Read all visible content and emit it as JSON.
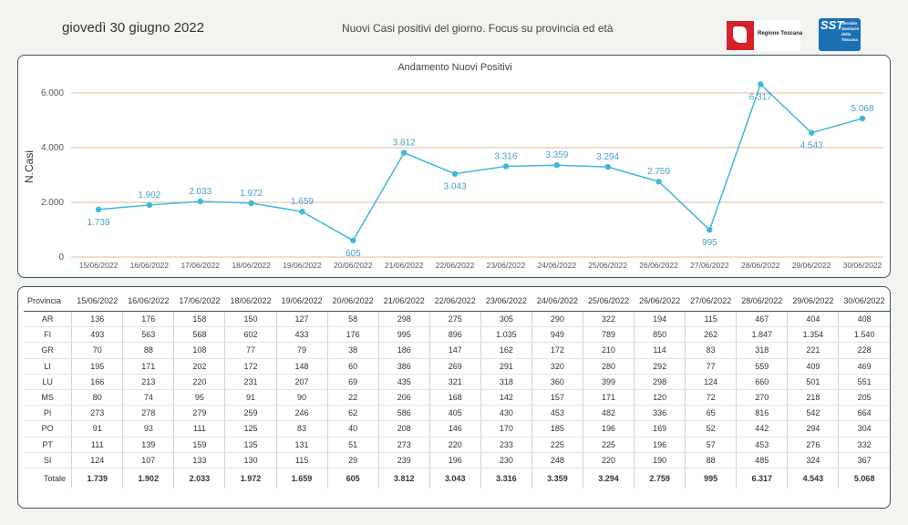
{
  "header": {
    "date": "giovedì 30 giugno 2022",
    "subtitle": "Nuovi Casi positivi del giorno. Focus su provincia ed età",
    "logo_region": "Regione Toscana",
    "logo_sst_short": "SST",
    "logo_sst_long": "Servizio Sanitario della Toscana"
  },
  "chart_data": {
    "type": "line",
    "title": "Andamento Nuovi Positivi",
    "ylabel": "N.Casi",
    "xlabel": "",
    "ylim": [
      0,
      6500
    ],
    "yticks": [
      0,
      2000,
      4000,
      6000
    ],
    "ytick_labels": [
      "0",
      "2.000",
      "4.000",
      "6.000"
    ],
    "grid": "horizontal",
    "colors": {
      "line": "#3fb8d8",
      "grid": "#e8b79a",
      "label": "#4a9fc9"
    },
    "categories": [
      "15/06/2022",
      "16/06/2022",
      "17/06/2022",
      "18/06/2022",
      "19/06/2022",
      "20/06/2022",
      "21/06/2022",
      "22/06/2022",
      "23/06/2022",
      "24/06/2022",
      "25/06/2022",
      "26/06/2022",
      "27/06/2022",
      "28/06/2022",
      "29/06/2022",
      "30/06/2022"
    ],
    "values": [
      1739,
      1902,
      2033,
      1972,
      1659,
      605,
      3812,
      3043,
      3316,
      3359,
      3294,
      2759,
      995,
      6317,
      4543,
      5068
    ],
    "value_labels": [
      "1.739",
      "1.902",
      "2.033",
      "1.972",
      "1.659",
      "605",
      "3.812",
      "3.043",
      "3.316",
      "3.359",
      "3.294",
      "2.759",
      "995",
      "6.317",
      "4.543",
      "5.068"
    ],
    "label_positions": [
      "below",
      "above",
      "above",
      "above",
      "above",
      "below",
      "above",
      "below",
      "above",
      "above",
      "above",
      "above",
      "below",
      "below",
      "below",
      "above"
    ]
  },
  "table": {
    "header_label": "Provincia",
    "dates": [
      "15/06/2022",
      "16/06/2022",
      "17/06/2022",
      "18/06/2022",
      "19/06/2022",
      "20/06/2022",
      "21/06/2022",
      "22/06/2022",
      "23/06/2022",
      "24/06/2022",
      "25/06/2022",
      "26/06/2022",
      "27/06/2022",
      "28/06/2022",
      "29/06/2022",
      "30/06/2022"
    ],
    "rows": [
      {
        "name": "AR",
        "values": [
          "136",
          "176",
          "158",
          "150",
          "127",
          "58",
          "298",
          "275",
          "305",
          "290",
          "322",
          "194",
          "115",
          "467",
          "404",
          "408"
        ]
      },
      {
        "name": "FI",
        "values": [
          "493",
          "563",
          "568",
          "602",
          "433",
          "176",
          "995",
          "896",
          "1.035",
          "949",
          "789",
          "850",
          "262",
          "1.847",
          "1.354",
          "1.540"
        ]
      },
      {
        "name": "GR",
        "values": [
          "70",
          "88",
          "108",
          "77",
          "79",
          "38",
          "186",
          "147",
          "162",
          "172",
          "210",
          "114",
          "83",
          "318",
          "221",
          "228"
        ]
      },
      {
        "name": "LI",
        "values": [
          "195",
          "171",
          "202",
          "172",
          "148",
          "60",
          "386",
          "269",
          "291",
          "320",
          "280",
          "292",
          "77",
          "559",
          "409",
          "469"
        ]
      },
      {
        "name": "LU",
        "values": [
          "166",
          "213",
          "220",
          "231",
          "207",
          "69",
          "435",
          "321",
          "318",
          "360",
          "399",
          "298",
          "124",
          "660",
          "501",
          "551"
        ]
      },
      {
        "name": "MS",
        "values": [
          "80",
          "74",
          "95",
          "91",
          "90",
          "22",
          "206",
          "168",
          "142",
          "157",
          "171",
          "120",
          "72",
          "270",
          "218",
          "205"
        ]
      },
      {
        "name": "PI",
        "values": [
          "273",
          "278",
          "279",
          "259",
          "246",
          "62",
          "586",
          "405",
          "430",
          "453",
          "482",
          "336",
          "65",
          "816",
          "542",
          "664"
        ]
      },
      {
        "name": "PO",
        "values": [
          "91",
          "93",
          "111",
          "125",
          "83",
          "40",
          "208",
          "146",
          "170",
          "185",
          "196",
          "169",
          "52",
          "442",
          "294",
          "304"
        ]
      },
      {
        "name": "PT",
        "values": [
          "111",
          "139",
          "159",
          "135",
          "131",
          "51",
          "273",
          "220",
          "233",
          "225",
          "225",
          "196",
          "57",
          "453",
          "276",
          "332"
        ]
      },
      {
        "name": "SI",
        "values": [
          "124",
          "107",
          "133",
          "130",
          "115",
          "29",
          "239",
          "196",
          "230",
          "248",
          "220",
          "190",
          "88",
          "485",
          "324",
          "367"
        ]
      }
    ],
    "total": {
      "name": "Totale",
      "values": [
        "1.739",
        "1.902",
        "2.033",
        "1.972",
        "1.659",
        "605",
        "3.812",
        "3.043",
        "3.316",
        "3.359",
        "3.294",
        "2.759",
        "995",
        "6.317",
        "4.543",
        "5.068"
      ]
    }
  }
}
